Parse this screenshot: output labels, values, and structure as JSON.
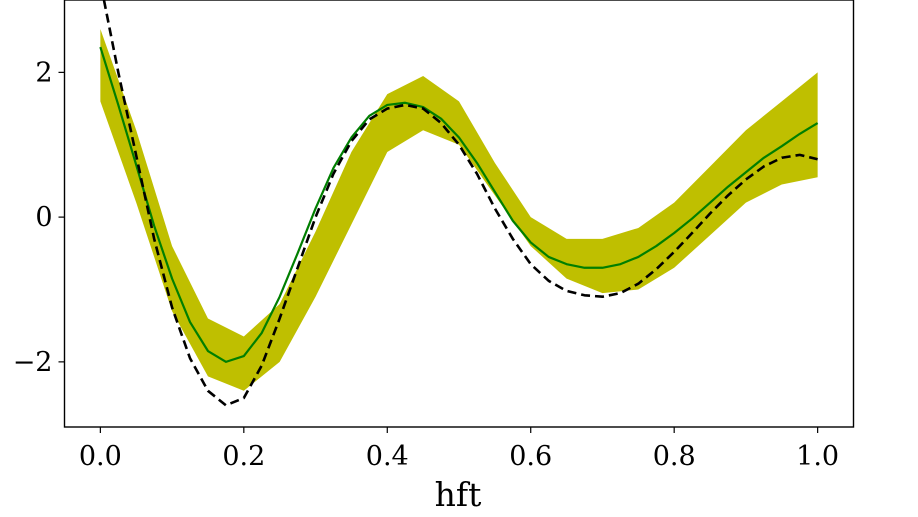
{
  "chart_data": {
    "type": "line",
    "title": "",
    "xlabel": "hft",
    "ylabel": "",
    "xlim": [
      -0.05,
      1.05
    ],
    "ylim": [
      -2.9,
      3.0
    ],
    "grid": false,
    "x_ticks": [
      0.0,
      0.2,
      0.4,
      0.6,
      0.8,
      1.0
    ],
    "x_tick_labels": [
      "0.0",
      "0.2",
      "0.4",
      "0.6",
      "0.8",
      "1.0"
    ],
    "y_ticks": [
      -2,
      0,
      2
    ],
    "y_tick_labels": [
      "−2",
      "0",
      "2"
    ],
    "band": {
      "color": "#bfbf00",
      "x": [
        0.0,
        0.05,
        0.1,
        0.15,
        0.2,
        0.25,
        0.3,
        0.35,
        0.4,
        0.45,
        0.5,
        0.55,
        0.6,
        0.65,
        0.7,
        0.75,
        0.8,
        0.85,
        0.9,
        0.95,
        1.0
      ],
      "lower": [
        1.6,
        0.2,
        -1.3,
        -2.2,
        -2.4,
        -2.0,
        -1.1,
        -0.1,
        0.9,
        1.2,
        1.0,
        0.3,
        -0.4,
        -0.85,
        -1.05,
        -1.0,
        -0.7,
        -0.25,
        0.2,
        0.45,
        0.55
      ],
      "upper": [
        2.6,
        1.2,
        -0.4,
        -1.4,
        -1.65,
        -1.2,
        -0.2,
        0.9,
        1.7,
        1.95,
        1.6,
        0.75,
        0.0,
        -0.3,
        -0.3,
        -0.15,
        0.2,
        0.7,
        1.2,
        1.6,
        2.0
      ]
    },
    "series": [
      {
        "style": "solid",
        "color": "#007f00",
        "x": [
          0.0,
          0.025,
          0.05,
          0.075,
          0.1,
          0.125,
          0.15,
          0.175,
          0.2,
          0.225,
          0.25,
          0.275,
          0.3,
          0.325,
          0.35,
          0.375,
          0.4,
          0.425,
          0.45,
          0.475,
          0.5,
          0.525,
          0.55,
          0.575,
          0.6,
          0.625,
          0.65,
          0.675,
          0.7,
          0.725,
          0.75,
          0.775,
          0.8,
          0.825,
          0.85,
          0.875,
          0.9,
          0.925,
          0.95,
          0.975,
          1.0
        ],
        "y": [
          2.35,
          1.55,
          0.72,
          -0.12,
          -0.85,
          -1.45,
          -1.85,
          -2.0,
          -1.92,
          -1.6,
          -1.1,
          -0.5,
          0.12,
          0.68,
          1.1,
          1.4,
          1.55,
          1.58,
          1.52,
          1.36,
          1.1,
          0.75,
          0.35,
          -0.05,
          -0.35,
          -0.55,
          -0.65,
          -0.7,
          -0.7,
          -0.65,
          -0.55,
          -0.4,
          -0.22,
          -0.02,
          0.2,
          0.42,
          0.62,
          0.82,
          0.98,
          1.15,
          1.3
        ]
      },
      {
        "style": "dashed",
        "color": "#000000",
        "x": [
          0.005,
          0.025,
          0.05,
          0.075,
          0.1,
          0.125,
          0.15,
          0.175,
          0.2,
          0.225,
          0.25,
          0.275,
          0.3,
          0.325,
          0.35,
          0.375,
          0.4,
          0.425,
          0.45,
          0.475,
          0.5,
          0.525,
          0.55,
          0.575,
          0.6,
          0.625,
          0.65,
          0.675,
          0.7,
          0.725,
          0.75,
          0.775,
          0.8,
          0.825,
          0.85,
          0.875,
          0.9,
          0.925,
          0.95,
          0.975,
          1.0
        ],
        "y": [
          3.0,
          2.0,
          0.85,
          -0.3,
          -1.25,
          -1.95,
          -2.4,
          -2.6,
          -2.5,
          -2.05,
          -1.4,
          -0.7,
          0.0,
          0.6,
          1.05,
          1.35,
          1.5,
          1.55,
          1.5,
          1.3,
          1.0,
          0.6,
          0.12,
          -0.3,
          -0.65,
          -0.88,
          -1.02,
          -1.08,
          -1.1,
          -1.05,
          -0.92,
          -0.72,
          -0.48,
          -0.22,
          0.05,
          0.3,
          0.52,
          0.7,
          0.82,
          0.86,
          0.8
        ]
      }
    ]
  }
}
